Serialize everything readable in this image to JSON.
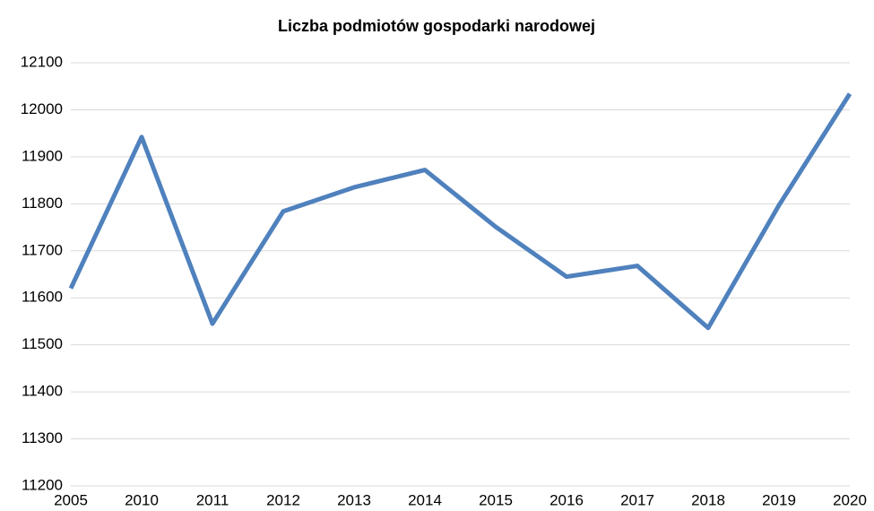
{
  "chart_data": {
    "type": "line",
    "title": "Liczba podmiotów gospodarki narodowej",
    "categories": [
      "2005",
      "2010",
      "2011",
      "2012",
      "2013",
      "2014",
      "2015",
      "2016",
      "2017",
      "2018",
      "2019",
      "2020"
    ],
    "series": [
      {
        "name": "Liczba podmiotów gospodarki narodowej",
        "color": "#4f81bd",
        "values": [
          11620,
          11942,
          11545,
          11784,
          11835,
          11872,
          11751,
          11645,
          11668,
          11536,
          11797,
          12034
        ]
      }
    ],
    "ylim": [
      11200,
      12100
    ],
    "yticks": [
      11200,
      11300,
      11400,
      11500,
      11600,
      11700,
      11800,
      11900,
      12000,
      12100
    ],
    "grid": true
  }
}
